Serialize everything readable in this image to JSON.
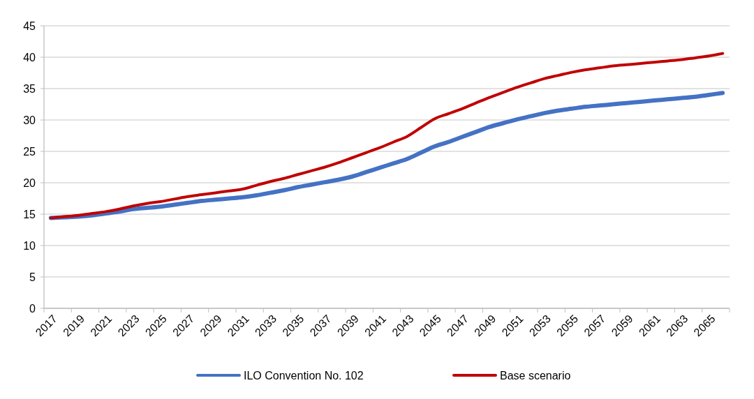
{
  "chart_data": {
    "type": "line",
    "categories": [
      "2017",
      null,
      "2019",
      null,
      "2021",
      null,
      "2023",
      null,
      "2025",
      null,
      "2027",
      null,
      "2029",
      null,
      "2031",
      null,
      "2033",
      null,
      "2035",
      null,
      "2037",
      null,
      "2039",
      null,
      "2041",
      null,
      "2043",
      null,
      "2045",
      null,
      "2047",
      null,
      "2049",
      null,
      "2051",
      null,
      "2053",
      null,
      "2055",
      null,
      "2057",
      null,
      "2059",
      null,
      "2061",
      null,
      "2063",
      null,
      "2065",
      null
    ],
    "series": [
      {
        "name": "ILO Convention No. 102",
        "color": "#4472c4",
        "values": [
          14.4,
          14.5,
          14.6,
          14.8,
          15.1,
          15.4,
          15.8,
          16.0,
          16.2,
          16.5,
          16.8,
          17.1,
          17.3,
          17.5,
          17.7,
          18.0,
          18.4,
          18.8,
          19.3,
          19.7,
          20.1,
          20.5,
          21.0,
          21.7,
          22.4,
          23.1,
          23.8,
          24.8,
          25.8,
          26.5,
          27.3,
          28.1,
          28.9,
          29.5,
          30.1,
          30.6,
          31.1,
          31.5,
          31.8,
          32.1,
          32.3,
          32.5,
          32.7,
          32.9,
          33.1,
          33.3,
          33.5,
          33.7,
          34.0,
          34.3
        ]
      },
      {
        "name": "Base scenario",
        "color": "#c00000",
        "values": [
          14.4,
          14.6,
          14.8,
          15.1,
          15.4,
          15.8,
          16.3,
          16.7,
          17.0,
          17.4,
          17.8,
          18.1,
          18.4,
          18.7,
          19.0,
          19.6,
          20.2,
          20.7,
          21.3,
          21.9,
          22.5,
          23.2,
          24.0,
          24.8,
          25.6,
          26.5,
          27.4,
          28.8,
          30.2,
          31.0,
          31.8,
          32.7,
          33.6,
          34.4,
          35.2,
          35.9,
          36.6,
          37.1,
          37.6,
          38.0,
          38.3,
          38.6,
          38.8,
          39.0,
          39.2,
          39.4,
          39.6,
          39.9,
          40.2,
          40.6
        ]
      }
    ],
    "ylim": [
      0,
      45
    ],
    "yticks": [
      0,
      5,
      10,
      15,
      20,
      25,
      30,
      35,
      40,
      45
    ],
    "grid": "y",
    "legend": "bottom",
    "marker": "none",
    "line_style": "solid"
  }
}
